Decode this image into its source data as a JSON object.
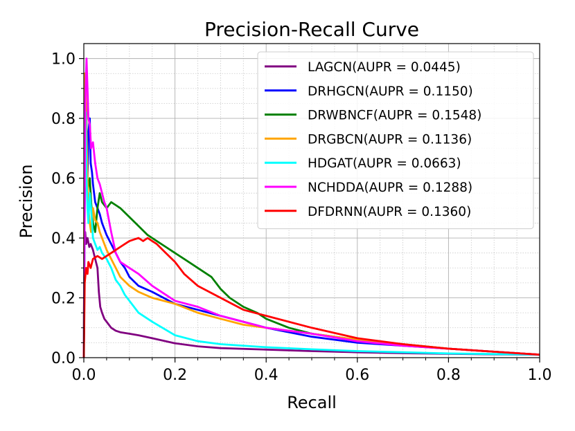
{
  "chart_data": {
    "type": "line",
    "title": "Precision-Recall Curve",
    "xlabel": "Recall",
    "ylabel": "Precision",
    "xlim": [
      0.0,
      1.0
    ],
    "ylim": [
      0.0,
      1.05
    ],
    "xticks": [
      "0.0",
      "0.2",
      "0.4",
      "0.6",
      "0.8",
      "1.0"
    ],
    "yticks": [
      "0.0",
      "0.2",
      "0.4",
      "0.6",
      "0.8",
      "1.0"
    ],
    "grid": true,
    "minor_grid": true,
    "legend_position": "top-right",
    "series": [
      {
        "name": "LAGCN(AUPR = 0.0445)",
        "color": "#800080",
        "x": [
          0.0,
          0.001,
          0.003,
          0.005,
          0.008,
          0.012,
          0.015,
          0.02,
          0.025,
          0.03,
          0.033,
          0.036,
          0.04,
          0.045,
          0.05,
          0.06,
          0.07,
          0.08,
          0.1,
          0.12,
          0.15,
          0.2,
          0.25,
          0.3,
          0.4,
          0.5,
          0.6,
          0.7,
          0.8,
          0.9,
          1.0
        ],
        "y": [
          0.0,
          0.36,
          0.42,
          0.38,
          0.4,
          0.37,
          0.38,
          0.36,
          0.33,
          0.3,
          0.22,
          0.17,
          0.15,
          0.13,
          0.12,
          0.1,
          0.09,
          0.085,
          0.08,
          0.075,
          0.065,
          0.048,
          0.038,
          0.032,
          0.027,
          0.022,
          0.018,
          0.015,
          0.013,
          0.011,
          0.01
        ]
      },
      {
        "name": "DRHGCN(AUPR = 0.1150)",
        "color": "#0000ff",
        "x": [
          0.0,
          0.002,
          0.005,
          0.008,
          0.01,
          0.013,
          0.015,
          0.018,
          0.02,
          0.025,
          0.03,
          0.035,
          0.04,
          0.05,
          0.06,
          0.07,
          0.08,
          0.09,
          0.1,
          0.12,
          0.15,
          0.2,
          0.25,
          0.3,
          0.35,
          0.4,
          0.5,
          0.6,
          0.7,
          0.8,
          0.9,
          1.0
        ],
        "y": [
          0.0,
          0.5,
          0.85,
          0.6,
          0.75,
          0.8,
          0.65,
          0.62,
          0.58,
          0.52,
          0.5,
          0.48,
          0.45,
          0.41,
          0.38,
          0.35,
          0.32,
          0.3,
          0.27,
          0.24,
          0.22,
          0.18,
          0.16,
          0.14,
          0.12,
          0.1,
          0.07,
          0.05,
          0.04,
          0.03,
          0.02,
          0.01
        ]
      },
      {
        "name": "DRWBNCF(AUPR = 0.1548)",
        "color": "#008000",
        "x": [
          0.0,
          0.002,
          0.004,
          0.006,
          0.008,
          0.01,
          0.013,
          0.016,
          0.02,
          0.025,
          0.03,
          0.035,
          0.04,
          0.05,
          0.06,
          0.07,
          0.08,
          0.1,
          0.12,
          0.14,
          0.16,
          0.18,
          0.2,
          0.22,
          0.25,
          0.28,
          0.3,
          0.32,
          0.35,
          0.38,
          0.4,
          0.45,
          0.5,
          0.6,
          0.7,
          0.8,
          0.9,
          1.0
        ],
        "y": [
          0.0,
          0.6,
          0.75,
          0.68,
          0.55,
          0.58,
          0.6,
          0.52,
          0.45,
          0.42,
          0.5,
          0.55,
          0.52,
          0.5,
          0.52,
          0.51,
          0.5,
          0.47,
          0.44,
          0.41,
          0.39,
          0.37,
          0.35,
          0.33,
          0.3,
          0.27,
          0.23,
          0.2,
          0.17,
          0.15,
          0.13,
          0.1,
          0.08,
          0.06,
          0.045,
          0.03,
          0.02,
          0.01
        ]
      },
      {
        "name": "DRGBCN(AUPR = 0.1136)",
        "color": "#ffa500",
        "x": [
          0.0,
          0.002,
          0.004,
          0.006,
          0.008,
          0.01,
          0.013,
          0.016,
          0.02,
          0.025,
          0.03,
          0.035,
          0.04,
          0.05,
          0.06,
          0.07,
          0.08,
          0.1,
          0.12,
          0.15,
          0.2,
          0.25,
          0.3,
          0.35,
          0.4,
          0.5,
          0.6,
          0.7,
          0.8,
          0.9,
          1.0
        ],
        "y": [
          0.0,
          0.95,
          0.9,
          0.75,
          0.6,
          0.5,
          0.45,
          0.42,
          0.5,
          0.46,
          0.45,
          0.42,
          0.4,
          0.36,
          0.33,
          0.3,
          0.27,
          0.24,
          0.22,
          0.2,
          0.18,
          0.15,
          0.13,
          0.11,
          0.1,
          0.08,
          0.06,
          0.045,
          0.03,
          0.02,
          0.01
        ]
      },
      {
        "name": "HDGAT(AUPR = 0.0663)",
        "color": "#00ffff",
        "x": [
          0.0,
          0.002,
          0.004,
          0.006,
          0.008,
          0.01,
          0.013,
          0.016,
          0.02,
          0.025,
          0.03,
          0.035,
          0.04,
          0.05,
          0.06,
          0.07,
          0.08,
          0.09,
          0.1,
          0.12,
          0.15,
          0.2,
          0.25,
          0.3,
          0.4,
          0.5,
          0.6,
          0.7,
          0.8,
          0.9,
          1.0
        ],
        "y": [
          0.0,
          0.55,
          0.82,
          0.6,
          0.5,
          0.45,
          0.55,
          0.5,
          0.4,
          0.38,
          0.36,
          0.37,
          0.35,
          0.33,
          0.3,
          0.26,
          0.24,
          0.21,
          0.19,
          0.15,
          0.12,
          0.075,
          0.055,
          0.045,
          0.035,
          0.028,
          0.022,
          0.018,
          0.014,
          0.012,
          0.01
        ]
      },
      {
        "name": "NCHDDA(AUPR = 0.1288)",
        "color": "#ff00ff",
        "x": [
          0.0,
          0.003,
          0.006,
          0.008,
          0.01,
          0.013,
          0.016,
          0.02,
          0.025,
          0.03,
          0.035,
          0.04,
          0.045,
          0.05,
          0.06,
          0.07,
          0.08,
          0.1,
          0.12,
          0.15,
          0.2,
          0.25,
          0.3,
          0.35,
          0.4,
          0.5,
          0.6,
          0.7,
          0.8,
          0.9,
          1.0
        ],
        "y": [
          0.0,
          0.85,
          1.0,
          0.9,
          0.8,
          0.78,
          0.7,
          0.72,
          0.65,
          0.6,
          0.58,
          0.55,
          0.52,
          0.5,
          0.42,
          0.35,
          0.32,
          0.3,
          0.28,
          0.24,
          0.19,
          0.17,
          0.14,
          0.12,
          0.1,
          0.08,
          0.055,
          0.04,
          0.03,
          0.02,
          0.01
        ]
      },
      {
        "name": "DFDRNN(AUPR = 0.1360)",
        "color": "#ff0000",
        "x": [
          0.0,
          0.002,
          0.005,
          0.008,
          0.01,
          0.015,
          0.02,
          0.03,
          0.04,
          0.05,
          0.06,
          0.07,
          0.08,
          0.09,
          0.1,
          0.11,
          0.12,
          0.13,
          0.14,
          0.15,
          0.16,
          0.18,
          0.2,
          0.22,
          0.25,
          0.3,
          0.35,
          0.4,
          0.5,
          0.6,
          0.7,
          0.8,
          0.9,
          1.0
        ],
        "y": [
          0.0,
          0.25,
          0.3,
          0.28,
          0.32,
          0.3,
          0.33,
          0.34,
          0.33,
          0.34,
          0.35,
          0.36,
          0.37,
          0.38,
          0.39,
          0.395,
          0.4,
          0.39,
          0.4,
          0.39,
          0.38,
          0.35,
          0.32,
          0.28,
          0.24,
          0.2,
          0.16,
          0.14,
          0.1,
          0.065,
          0.045,
          0.03,
          0.02,
          0.01
        ]
      }
    ]
  }
}
